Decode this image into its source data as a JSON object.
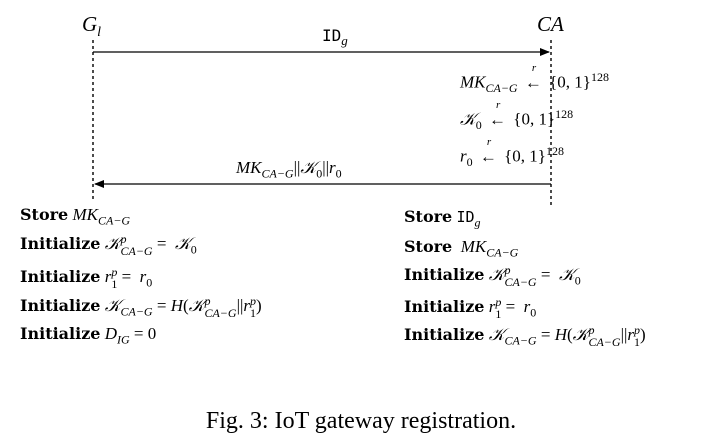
{
  "entities": {
    "left_symbol": "G",
    "left_subscript": "l",
    "right_label": "CA"
  },
  "messages": {
    "first": {
      "id_text": "ID",
      "id_subscript": "g"
    },
    "second": "MK_{CA−G}||𝒦_0||r_0"
  },
  "ca_generation": [
    {
      "var": "MK",
      "sub": "CA−G",
      "arrow_sup": "r",
      "set": "{0, 1}",
      "exp": "128"
    },
    {
      "var": "𝒦",
      "sub": "0",
      "arrow_sup": "r",
      "set": "{0, 1}",
      "exp": "128"
    },
    {
      "var": "r",
      "sub": "0",
      "arrow_sup": "r",
      "set": "{0, 1}",
      "exp": "128"
    }
  ],
  "gateway_actions": [
    "Store MK_{CA−G}",
    "Initialize 𝒦^p_{CA−G} = 𝒦_0",
    "Initialize r^p_1 = r_0",
    "Initialize 𝒦_{CA−G} = H(𝒦^p_{CA−G}||r^p_1)",
    "Initialize D_{IG} = 0"
  ],
  "ca_actions": [
    "Store ID_g",
    "Store MK_{CA−G}",
    "Initialize 𝒦^p_{CA−G} = 𝒦_0",
    "Initialize r^p_1 = r_0",
    "Initialize 𝒦_{CA−G} = H(𝒦^p_{CA−G}||r^p_1)"
  ],
  "caption": "Fig. 3: IoT gateway registration."
}
